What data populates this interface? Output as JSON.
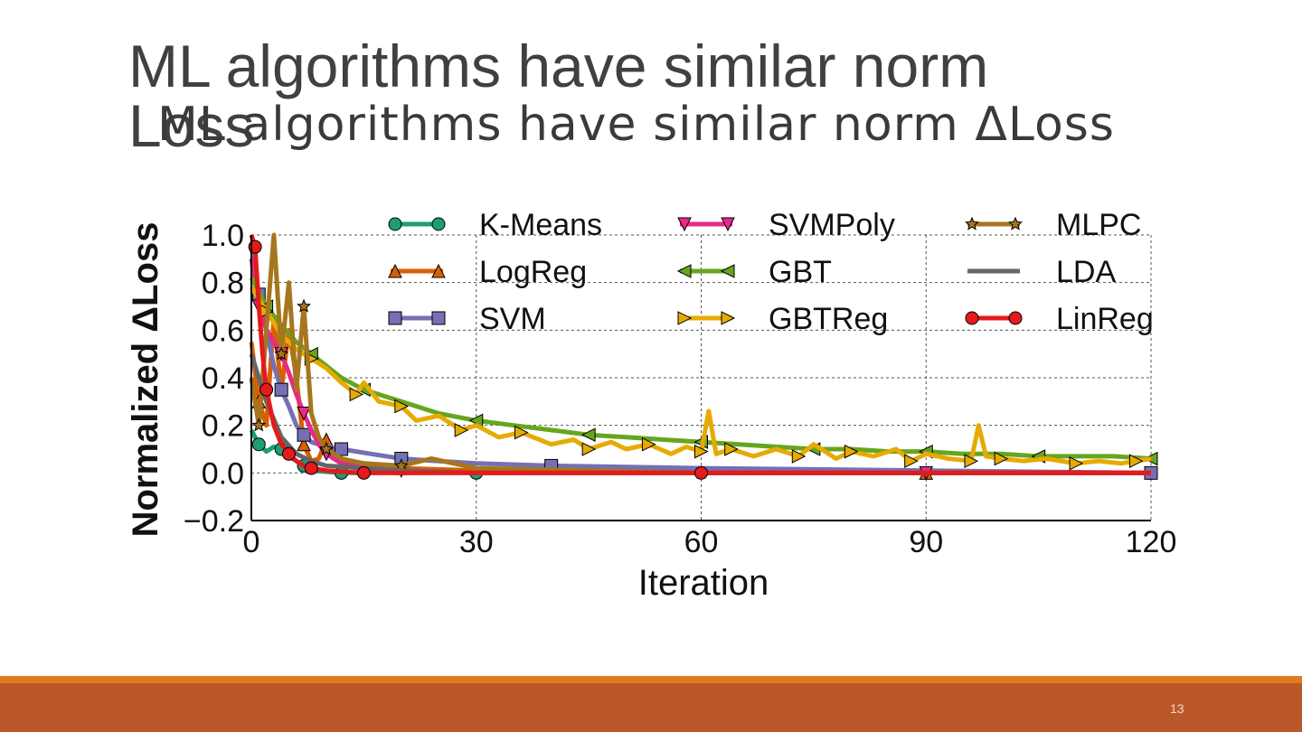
{
  "slide": {
    "title": "ML algorithms have similar norm Loss",
    "page_number": "13"
  },
  "chart_data": {
    "type": "line",
    "title": "ML algorithms have similar norm ΔLoss",
    "xlabel": "Iteration",
    "ylabel": "Normalized ΔLoss",
    "xlim": [
      0,
      120
    ],
    "ylim": [
      -0.2,
      1.0
    ],
    "xticks": [
      0,
      30,
      60,
      90,
      120
    ],
    "yticks": [
      -0.2,
      0.0,
      0.2,
      0.4,
      0.6,
      0.8,
      1.0
    ],
    "xtick_labels": [
      "0",
      "30",
      "60",
      "90",
      "120"
    ],
    "ytick_labels": [
      "−0.2",
      "0.0",
      "0.2",
      "0.4",
      "0.6",
      "0.8",
      "1.0"
    ],
    "grid": true,
    "legend_position": "top-right",
    "series": [
      {
        "name": "K-Means",
        "color": "#1b9e77",
        "marker": "circle",
        "x": [
          0,
          1,
          2,
          3,
          4,
          5,
          6,
          7,
          8,
          10,
          12,
          15,
          20,
          30,
          60,
          90,
          120
        ],
        "y": [
          0.18,
          0.12,
          0.09,
          0.11,
          0.1,
          0.07,
          0.05,
          0.03,
          0.01,
          0.005,
          0.0,
          0.0,
          0.0,
          0.0,
          0.0,
          0.0,
          0.0
        ]
      },
      {
        "name": "LogReg",
        "color": "#d95f02",
        "marker": "triangle-up",
        "x": [
          0,
          1,
          2,
          3,
          4,
          5,
          6,
          7,
          8,
          9,
          10,
          12,
          15,
          20,
          30,
          60,
          90,
          120
        ],
        "y": [
          0.55,
          0.3,
          0.2,
          0.65,
          0.35,
          0.6,
          0.4,
          0.12,
          0.05,
          0.06,
          0.14,
          0.04,
          0.03,
          0.02,
          0.01,
          0.005,
          0.0,
          0.0
        ]
      },
      {
        "name": "SVM",
        "color": "#7570b3",
        "marker": "square",
        "x": [
          0,
          1,
          2,
          3,
          4,
          5,
          6,
          7,
          8,
          10,
          12,
          14,
          16,
          20,
          25,
          30,
          40,
          60,
          90,
          120
        ],
        "y": [
          0.95,
          0.75,
          0.6,
          0.45,
          0.35,
          0.28,
          0.2,
          0.16,
          0.13,
          0.11,
          0.1,
          0.09,
          0.08,
          0.06,
          0.05,
          0.04,
          0.03,
          0.02,
          0.01,
          0.0
        ]
      },
      {
        "name": "SVMPoly",
        "color": "#e7298a",
        "marker": "triangle-down",
        "x": [
          0,
          1,
          2,
          3,
          4,
          5,
          6,
          7,
          8,
          9,
          10,
          12,
          15,
          20,
          30,
          60,
          90,
          120
        ],
        "y": [
          0.9,
          0.7,
          0.6,
          0.55,
          0.5,
          0.42,
          0.33,
          0.25,
          0.18,
          0.12,
          0.08,
          0.04,
          0.02,
          0.01,
          0.0,
          0.0,
          0.0,
          0.0
        ]
      },
      {
        "name": "GBT",
        "color": "#66a61e",
        "marker": "triangle-left",
        "x": [
          0,
          2,
          4,
          6,
          8,
          10,
          12,
          15,
          20,
          25,
          30,
          35,
          40,
          45,
          50,
          55,
          60,
          65,
          70,
          75,
          80,
          85,
          90,
          95,
          100,
          105,
          110,
          115,
          120
        ],
        "y": [
          0.82,
          0.7,
          0.62,
          0.55,
          0.5,
          0.45,
          0.4,
          0.35,
          0.3,
          0.25,
          0.22,
          0.2,
          0.18,
          0.16,
          0.15,
          0.14,
          0.13,
          0.12,
          0.11,
          0.1,
          0.1,
          0.09,
          0.09,
          0.08,
          0.08,
          0.07,
          0.07,
          0.07,
          0.06
        ]
      },
      {
        "name": "GBTReg",
        "color": "#e6ab02",
        "marker": "triangle-right",
        "x": [
          0,
          2,
          4,
          6,
          8,
          10,
          12,
          14,
          15,
          17,
          20,
          22,
          25,
          28,
          30,
          33,
          36,
          40,
          43,
          45,
          48,
          50,
          53,
          56,
          58,
          60,
          61,
          62,
          64,
          67,
          70,
          73,
          75,
          78,
          80,
          83,
          86,
          88,
          90,
          93,
          96,
          97,
          98,
          100,
          103,
          106,
          110,
          113,
          116,
          118,
          120
        ],
        "y": [
          0.78,
          0.68,
          0.58,
          0.52,
          0.48,
          0.44,
          0.38,
          0.33,
          0.38,
          0.3,
          0.28,
          0.22,
          0.24,
          0.18,
          0.2,
          0.15,
          0.17,
          0.12,
          0.14,
          0.1,
          0.13,
          0.1,
          0.12,
          0.08,
          0.11,
          0.09,
          0.26,
          0.08,
          0.1,
          0.07,
          0.1,
          0.07,
          0.12,
          0.06,
          0.09,
          0.07,
          0.1,
          0.05,
          0.08,
          0.06,
          0.05,
          0.2,
          0.07,
          0.06,
          0.05,
          0.06,
          0.04,
          0.05,
          0.04,
          0.05,
          0.06
        ]
      },
      {
        "name": "MLPC",
        "color": "#a6761d",
        "marker": "star",
        "x": [
          0,
          1,
          2,
          3,
          4,
          5,
          6,
          7,
          8,
          9,
          10,
          12,
          15,
          20,
          24,
          30,
          60,
          90,
          120
        ],
        "y": [
          0.4,
          0.2,
          0.6,
          1.0,
          0.5,
          0.8,
          0.35,
          0.7,
          0.25,
          0.15,
          0.1,
          0.06,
          0.04,
          0.03,
          0.06,
          0.02,
          0.0,
          0.0,
          0.0
        ]
      },
      {
        "name": "LDA",
        "color": "#666666",
        "marker": "none",
        "x": [
          0,
          2,
          4,
          6,
          8,
          10,
          15,
          20,
          30,
          60,
          90,
          120
        ],
        "y": [
          0.5,
          0.3,
          0.15,
          0.08,
          0.05,
          0.03,
          0.02,
          0.01,
          0.0,
          0.0,
          0.0,
          0.0
        ]
      },
      {
        "name": "LinReg",
        "color": "#e41a1c",
        "marker": "circle",
        "x": [
          0,
          0.5,
          1,
          1.5,
          2,
          3,
          4,
          5,
          6,
          7,
          8,
          10,
          12,
          15,
          20,
          30,
          60,
          90,
          120
        ],
        "y": [
          1.0,
          0.95,
          0.7,
          0.5,
          0.35,
          0.2,
          0.12,
          0.08,
          0.05,
          0.03,
          0.02,
          0.01,
          0.005,
          0.0,
          0.0,
          0.0,
          0.0,
          0.0,
          0.0
        ]
      }
    ]
  }
}
